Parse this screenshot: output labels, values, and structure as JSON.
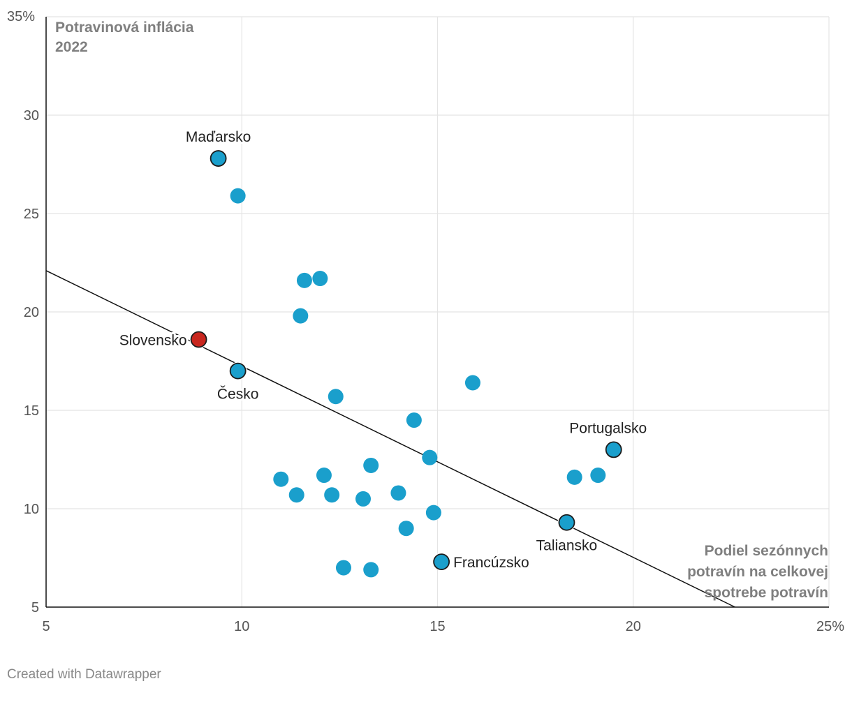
{
  "chart_data": {
    "type": "scatter",
    "title": "",
    "ylabel_lines": [
      "Potravinová inflácia",
      "2022"
    ],
    "xlabel_lines": [
      "Podiel sezónnych",
      "potravín na celkovej",
      "spotrebe potravín"
    ],
    "xlim": [
      5,
      25
    ],
    "ylim": [
      5,
      35
    ],
    "x_ticks": [
      "5",
      "10",
      "15",
      "20",
      "25%"
    ],
    "y_ticks": [
      "5",
      "10",
      "15",
      "20",
      "25",
      "30",
      "35%"
    ],
    "trendline": {
      "x": [
        5,
        22.6
      ],
      "y": [
        22.1,
        5.0
      ]
    },
    "colors": {
      "point": "#1a9fcc",
      "highlight": "#c8261e",
      "outline": "#1b1b1b",
      "grid": "#e4e4e4",
      "trend": "#111111"
    },
    "points": [
      {
        "x": 9.4,
        "y": 27.8,
        "label": "Maďarsko"
      },
      {
        "x": 9.9,
        "y": 25.9
      },
      {
        "x": 11.6,
        "y": 21.6
      },
      {
        "x": 12.0,
        "y": 21.7
      },
      {
        "x": 11.5,
        "y": 19.8
      },
      {
        "x": 8.9,
        "y": 18.6,
        "label": "Slovensko",
        "highlight": true
      },
      {
        "x": 9.9,
        "y": 17.0,
        "label": "Česko"
      },
      {
        "x": 12.4,
        "y": 15.7
      },
      {
        "x": 15.9,
        "y": 16.4
      },
      {
        "x": 14.4,
        "y": 14.5
      },
      {
        "x": 14.8,
        "y": 12.6
      },
      {
        "x": 13.3,
        "y": 12.2
      },
      {
        "x": 11.0,
        "y": 11.5
      },
      {
        "x": 12.1,
        "y": 11.7
      },
      {
        "x": 11.4,
        "y": 10.7
      },
      {
        "x": 12.3,
        "y": 10.7
      },
      {
        "x": 13.1,
        "y": 10.5
      },
      {
        "x": 14.0,
        "y": 10.8
      },
      {
        "x": 14.9,
        "y": 9.8
      },
      {
        "x": 14.2,
        "y": 9.0
      },
      {
        "x": 12.6,
        "y": 7.0
      },
      {
        "x": 13.3,
        "y": 6.9
      },
      {
        "x": 15.1,
        "y": 7.3,
        "label": "Francúzsko"
      },
      {
        "x": 18.3,
        "y": 9.3,
        "label": "Taliansko"
      },
      {
        "x": 18.5,
        "y": 11.6
      },
      {
        "x": 19.1,
        "y": 11.7
      },
      {
        "x": 19.5,
        "y": 13.0,
        "label": "Portugalsko"
      }
    ]
  },
  "footer": {
    "credit": "Created with Datawrapper"
  }
}
